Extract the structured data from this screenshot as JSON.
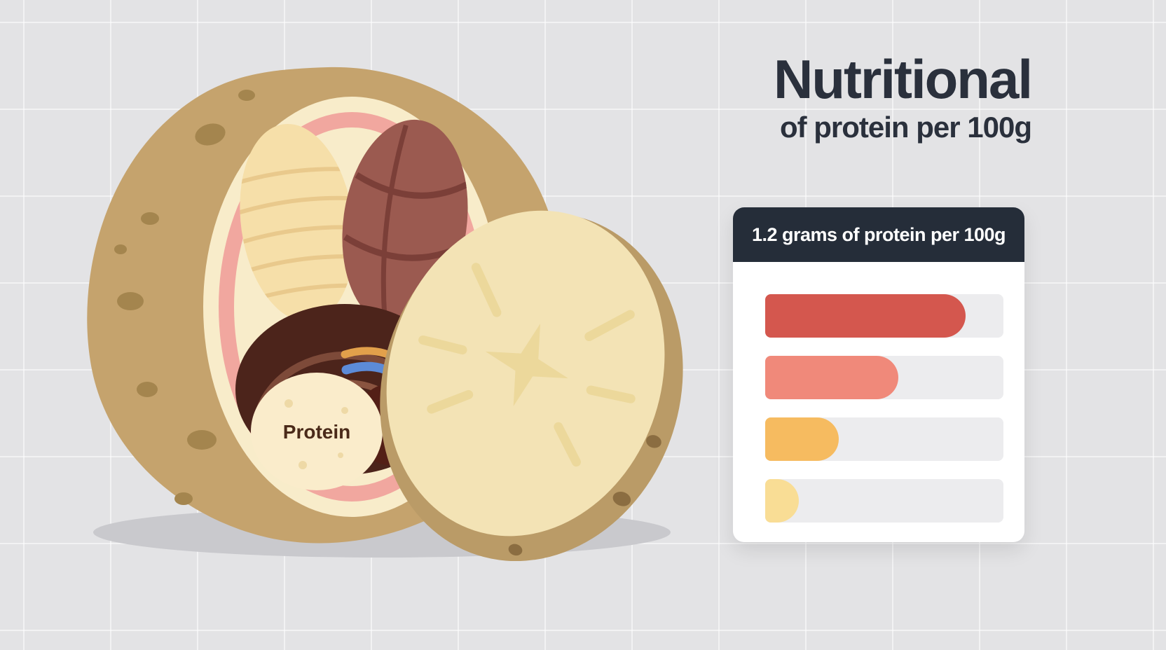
{
  "page": {
    "background": "#e3e3e5",
    "grid_line_color": "rgba(255,255,255,0.55)"
  },
  "title": {
    "line1": "Nutritional",
    "line2": "of protein per 100g",
    "color": "#2a303c"
  },
  "potato": {
    "label": "Protein",
    "skin_color": "#c5a36d",
    "flesh_color": "#f3e3b5",
    "pink_layer_color": "#f1a79f",
    "cavity_color": "#4c241b"
  },
  "card": {
    "header": "1.2 grams of protein per 100g",
    "header_bg": "#252d39",
    "track_color": "#ececee",
    "bars": [
      {
        "name": "bar-1",
        "color": "#d4574e",
        "percent": 84
      },
      {
        "name": "bar-2",
        "color": "#f0897a",
        "percent": 56
      },
      {
        "name": "bar-3",
        "color": "#f6bb60",
        "percent": 31
      },
      {
        "name": "bar-4",
        "color": "#f9dd95",
        "percent": 14
      }
    ]
  },
  "chart_data": {
    "type": "bar",
    "orientation": "horizontal",
    "title": "1.2 grams of protein per 100g",
    "categories": [
      "bar-1",
      "bar-2",
      "bar-3",
      "bar-4"
    ],
    "values": [
      84,
      56,
      31,
      14
    ],
    "value_note": "bars are unlabeled; values are estimated percent of track width",
    "colors": [
      "#d4574e",
      "#f0897a",
      "#f6bb60",
      "#f9dd95"
    ],
    "legend": "none",
    "grid": false
  }
}
